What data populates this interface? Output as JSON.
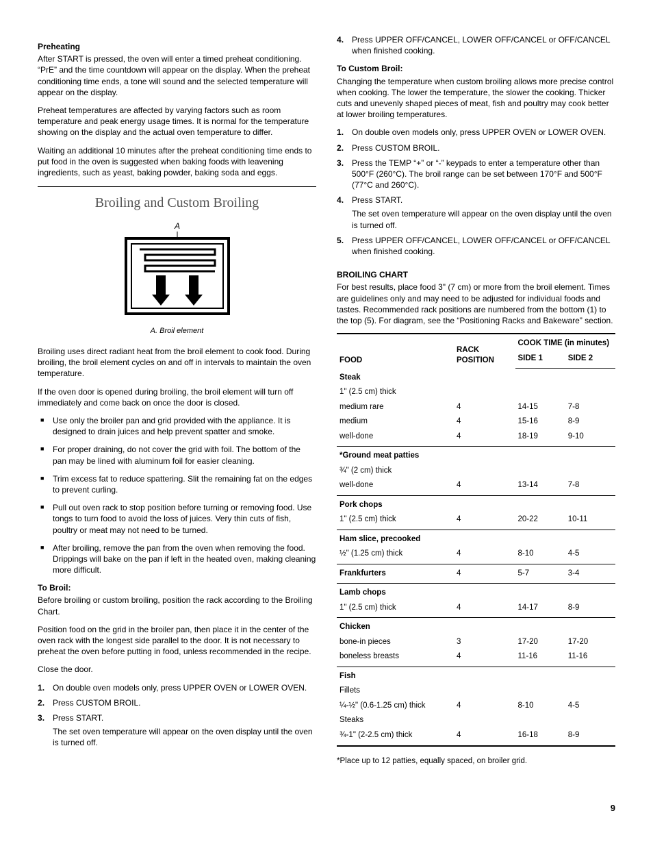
{
  "left": {
    "preheating": {
      "title": "Preheating",
      "p1": "After START is pressed, the oven will enter a timed preheat conditioning. “PrE” and the time countdown will appear on the display. When the preheat conditioning time ends, a tone will sound and the selected temperature will appear on the display.",
      "p2": "Preheat temperatures are affected by varying factors such as room temperature and peak energy usage times. It is normal for the temperature showing on the display and the actual oven temperature to differ.",
      "p3": "Waiting an additional 10 minutes after the preheat conditioning time ends to put food in the oven is suggested when baking foods with leavening ingredients, such as yeast, baking powder, baking soda and eggs."
    },
    "broiling": {
      "title": "Broiling and Custom Broiling",
      "diagram_label": "A",
      "caption": "A. Broil element",
      "p1": "Broiling uses direct radiant heat from the broil element to cook food. During broiling, the broil element cycles on and off in intervals to maintain the oven temperature.",
      "p2": "If the oven door is opened during broiling, the broil element will turn off immediately and come back on once the door is closed.",
      "bullets": [
        "Use only the broiler pan and grid provided with the appliance. It is designed to drain juices and help prevent spatter and smoke.",
        "For proper draining, do not cover the grid with foil. The bottom of the pan may be lined with aluminum foil for easier cleaning.",
        "Trim excess fat to reduce spattering. Slit the remaining fat on the edges to prevent curling.",
        "Pull out oven rack to stop position before turning or removing food. Use tongs to turn food to avoid the loss of juices. Very thin cuts of fish, poultry or meat may not need to be turned.",
        "After broiling, remove the pan from the oven when removing the food. Drippings will bake on the pan if left in the heated oven, making cleaning more difficult."
      ],
      "to_broil_title": "To Broil:",
      "tb_p1": "Before broiling or custom broiling, position the rack according to the Broiling Chart.",
      "tb_p2": "Position food on the grid in the broiler pan, then place it in the center of the oven rack with the longest side parallel to the door. It is not necessary to preheat the oven before putting in food, unless recommended in the recipe.",
      "tb_p3": "Close the door.",
      "tb_steps": [
        {
          "text": "On double oven models only, press UPPER OVEN or LOWER OVEN."
        },
        {
          "text": "Press CUSTOM BROIL."
        },
        {
          "text": "Press START.",
          "sub": "The set oven temperature will appear on the oven display until the oven is turned off."
        }
      ]
    }
  },
  "right": {
    "tb_step4": "Press UPPER OFF/CANCEL, LOWER OFF/CANCEL or OFF/CANCEL when finished cooking.",
    "custom_title": "To Custom Broil:",
    "custom_intro": "Changing the temperature when custom broiling allows more precise control when cooking. The lower the temperature, the slower the cooking. Thicker cuts and unevenly shaped pieces of meat, fish and poultry may cook better at lower broiling temperatures.",
    "custom_steps": [
      {
        "text": "On double oven models only, press UPPER OVEN or LOWER OVEN."
      },
      {
        "text": "Press CUSTOM BROIL."
      },
      {
        "text": "Press the TEMP “+” or “-” keypads to enter a temperature other than 500°F (260°C). The broil range can be set between 170°F and 500°F (77°C and 260°C)."
      },
      {
        "text": "Press START.",
        "sub": "The set oven temperature will appear on the oven display until the oven is turned off."
      },
      {
        "text": "Press UPPER OFF/CANCEL, LOWER OFF/CANCEL or OFF/CANCEL when finished cooking."
      }
    ],
    "chart_title": "BROILING CHART",
    "chart_intro": "For best results, place food 3\" (7 cm) or more from the broil element. Times are guidelines only and may need to be adjusted for individual foods and tastes. Recommended rack positions are numbered from the bottom (1) to the top (5). For diagram, see the “Positioning Racks and Bakeware” section.",
    "table": {
      "h_food": "FOOD",
      "h_rack": "RACK POSITION",
      "h_cook": "COOK TIME (in minutes)",
      "h_side1": "SIDE 1",
      "h_side2": "SIDE 2",
      "groups": [
        {
          "rows": [
            {
              "food": "Steak",
              "bold": true
            },
            {
              "food": "1\" (2.5 cm) thick"
            },
            {
              "food": "medium rare",
              "rack": "4",
              "s1": "14-15",
              "s2": "7-8"
            },
            {
              "food": "medium",
              "rack": "4",
              "s1": "15-16",
              "s2": "8-9"
            },
            {
              "food": "well-done",
              "rack": "4",
              "s1": "18-19",
              "s2": "9-10"
            }
          ]
        },
        {
          "rows": [
            {
              "food": "*Ground meat patties",
              "bold": true
            },
            {
              "food": "¾\" (2 cm) thick"
            },
            {
              "food": "well-done",
              "rack": "4",
              "s1": "13-14",
              "s2": "7-8"
            }
          ]
        },
        {
          "rows": [
            {
              "food": "Pork chops",
              "bold": true
            },
            {
              "food": "1\" (2.5 cm) thick",
              "rack": "4",
              "s1": "20-22",
              "s2": "10-11"
            }
          ]
        },
        {
          "rows": [
            {
              "food": "Ham slice, precooked",
              "bold": true
            },
            {
              "food": "½\" (1.25 cm) thick",
              "rack": "4",
              "s1": "8-10",
              "s2": "4-5"
            }
          ]
        },
        {
          "rows": [
            {
              "food": "Frankfurters",
              "bold": true,
              "rack": "4",
              "s1": "5-7",
              "s2": "3-4"
            }
          ]
        },
        {
          "rows": [
            {
              "food": "Lamb chops",
              "bold": true
            },
            {
              "food": "1\" (2.5 cm) thick",
              "rack": "4",
              "s1": "14-17",
              "s2": "8-9"
            }
          ]
        },
        {
          "rows": [
            {
              "food": "Chicken",
              "bold": true
            },
            {
              "food": "bone-in pieces",
              "rack": "3",
              "s1": "17-20",
              "s2": "17-20"
            },
            {
              "food": "boneless breasts",
              "rack": "4",
              "s1": "11-16",
              "s2": "11-16"
            }
          ]
        },
        {
          "rows": [
            {
              "food": "Fish",
              "bold": true
            },
            {
              "food": "Fillets"
            },
            {
              "food": "¼-½\" (0.6-1.25 cm) thick",
              "rack": "4",
              "s1": "8-10",
              "s2": "4-5"
            },
            {
              "food": "Steaks"
            },
            {
              "food": "¾-1\" (2-2.5 cm) thick",
              "rack": "4",
              "s1": "16-18",
              "s2": "8-9"
            }
          ]
        }
      ]
    },
    "footnote": "*Place up to 12 patties, equally spaced, on broiler grid."
  },
  "page_number": "9"
}
